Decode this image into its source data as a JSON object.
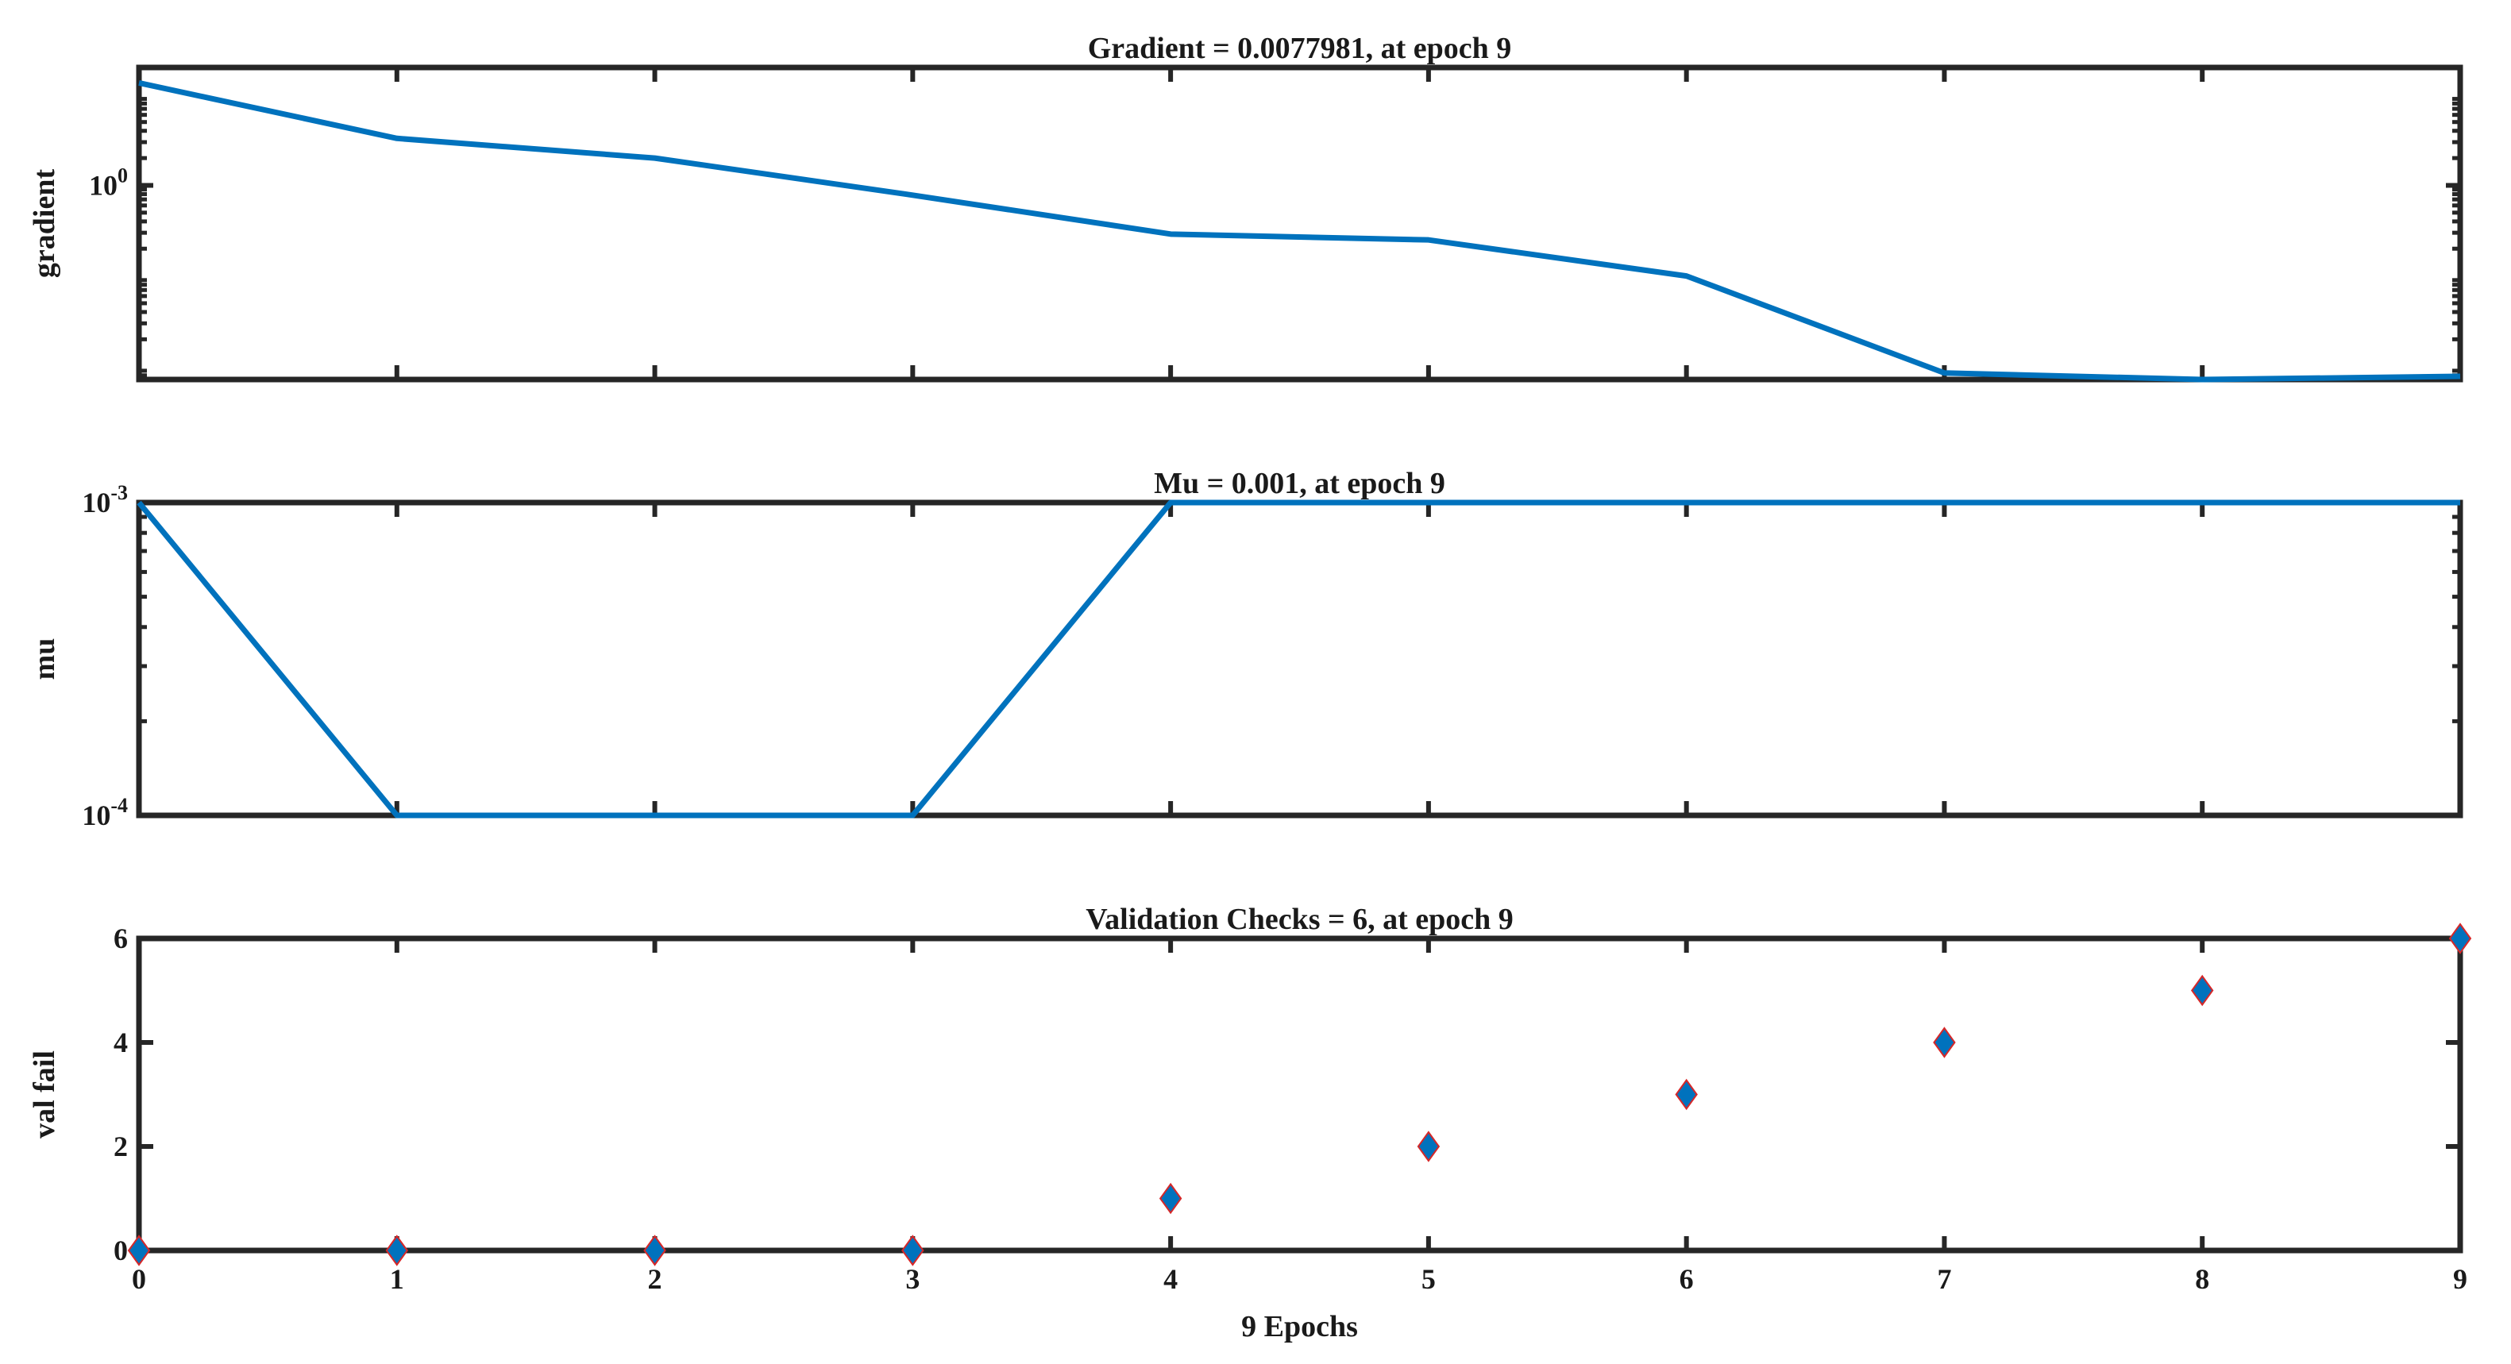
{
  "chart_data": [
    {
      "type": "line",
      "title": "Gradient = 0.0077981, at epoch 9",
      "xlabel": "",
      "ylabel": "gradient",
      "yscale": "log",
      "xlim": [
        0,
        9
      ],
      "ylim": [
        0.0072,
        20
      ],
      "x": [
        0,
        1,
        2,
        3,
        4,
        5,
        6,
        7,
        8,
        9
      ],
      "series": [
        {
          "name": "",
          "color": "#0072BD",
          "values": [
            13.5,
            3.3,
            2.0,
            0.78,
            0.29,
            0.25,
            0.1,
            0.0085,
            0.0072,
            0.0078
          ]
        }
      ],
      "yticks": [
        {
          "value": 1,
          "base": "10",
          "exp": "0"
        }
      ],
      "xticks": [
        0,
        1,
        2,
        3,
        4,
        5,
        6,
        7,
        8,
        9
      ],
      "show_xtick_labels": false,
      "grid": false
    },
    {
      "type": "line",
      "title": "Mu = 0.001, at epoch 9",
      "xlabel": "",
      "ylabel": "mu",
      "yscale": "log",
      "xlim": [
        0,
        9
      ],
      "ylim": [
        0.0001,
        0.001
      ],
      "x": [
        0,
        1,
        2,
        3,
        4,
        5,
        6,
        7,
        8,
        9
      ],
      "series": [
        {
          "name": "",
          "color": "#0072BD",
          "values": [
            0.001,
            0.0001,
            0.0001,
            0.0001,
            0.001,
            0.001,
            0.001,
            0.001,
            0.001,
            0.001
          ]
        }
      ],
      "yticks": [
        {
          "value": 0.0001,
          "base": "10",
          "exp": "-4"
        },
        {
          "value": 0.001,
          "base": "10",
          "exp": "-3"
        }
      ],
      "xticks": [
        0,
        1,
        2,
        3,
        4,
        5,
        6,
        7,
        8,
        9
      ],
      "show_xtick_labels": false,
      "grid": false
    },
    {
      "type": "scatter",
      "title": "Validation Checks = 6, at epoch 9",
      "xlabel": "9 Epochs",
      "ylabel": "val fail",
      "yscale": "linear",
      "xlim": [
        0,
        9
      ],
      "ylim": [
        0,
        6
      ],
      "x": [
        0,
        1,
        2,
        3,
        4,
        5,
        6,
        7,
        8,
        9
      ],
      "series": [
        {
          "name": "",
          "marker": "diamond",
          "color": "#0072BD",
          "marker_edge": "#D62728",
          "values": [
            0,
            0,
            0,
            0,
            1,
            2,
            3,
            4,
            5,
            6
          ]
        }
      ],
      "yticks": [
        {
          "value": 0,
          "label": "0"
        },
        {
          "value": 2,
          "label": "2"
        },
        {
          "value": 4,
          "label": "4"
        },
        {
          "value": 6,
          "label": "6"
        }
      ],
      "xticks": [
        0,
        1,
        2,
        3,
        4,
        5,
        6,
        7,
        8,
        9
      ],
      "show_xtick_labels": true,
      "grid": false
    }
  ]
}
